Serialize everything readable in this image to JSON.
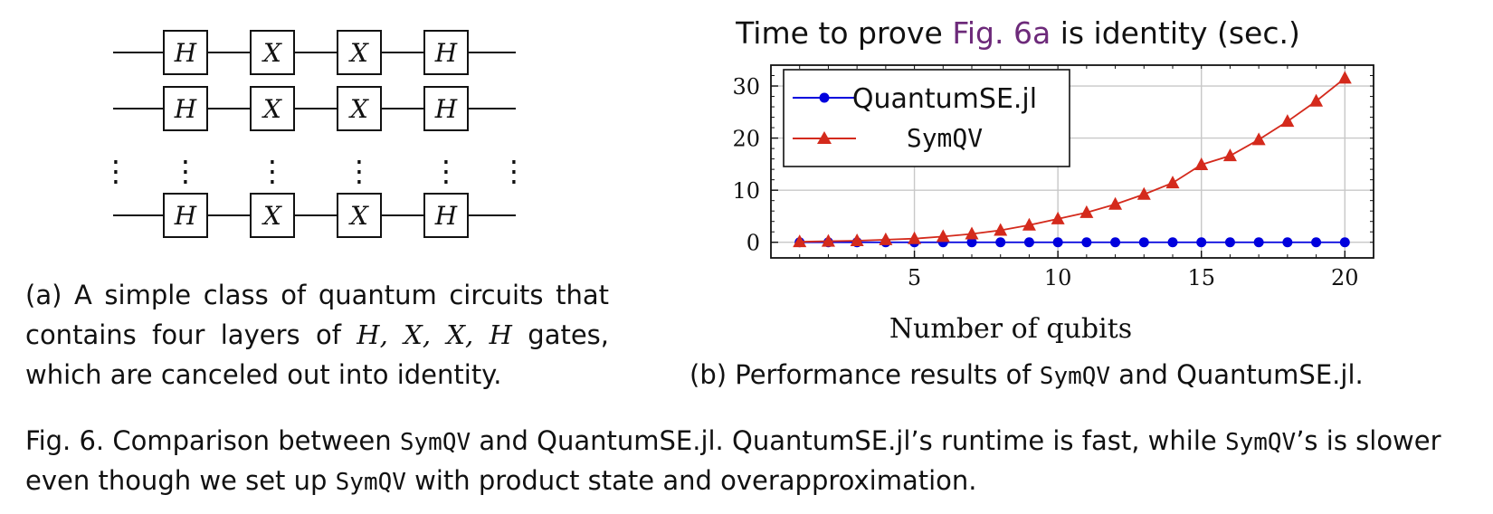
{
  "circuit": {
    "gates": [
      "H",
      "X",
      "X",
      "H"
    ],
    "ellipsis": "⋮"
  },
  "chart_data": {
    "type": "line",
    "title": {
      "pre": "Time to prove ",
      "ref": "Fig. 6a",
      "post": " is identity (sec.)"
    },
    "xlabel": "Number of qubits",
    "ylabel": "",
    "xlim": [
      0,
      21
    ],
    "ylim": [
      -3,
      34
    ],
    "xticks": [
      5,
      10,
      15,
      20
    ],
    "yticks": [
      0,
      10,
      20,
      30
    ],
    "grid": true,
    "legend_position": "top-left",
    "x": [
      1,
      2,
      3,
      4,
      5,
      6,
      7,
      8,
      9,
      10,
      11,
      12,
      13,
      14,
      15,
      16,
      17,
      18,
      19,
      20
    ],
    "series": [
      {
        "name": "QuantumSE.jl",
        "marker": "circle",
        "color": "#0000dd",
        "values": [
          0,
          0,
          0,
          0,
          0,
          0,
          0,
          0,
          0,
          0,
          0,
          0,
          0,
          0,
          0,
          0,
          0,
          0,
          0,
          0
        ]
      },
      {
        "name": "SymQV",
        "marker": "triangle",
        "color": "#d42a1c",
        "values": [
          0.1,
          0.2,
          0.3,
          0.5,
          0.7,
          1.1,
          1.6,
          2.3,
          3.3,
          4.5,
          5.7,
          7.3,
          9.2,
          11.4,
          14.9,
          16.6,
          19.7,
          23.2,
          27.1,
          31.5
        ]
      }
    ]
  },
  "captions": {
    "a": {
      "text1": "(a) A simple class of quantum circuits that contains four layers of ",
      "math": "H, X, X, H",
      "text2": " gates, which are canceled out into identity."
    },
    "b": {
      "pre": "(b) Performance results of ",
      "tool": "SymQV",
      "mid": " and QuantumSE.jl."
    },
    "figure": {
      "label": "Fig. 6.",
      "p1": "  Comparison between ",
      "t1": "SymQV",
      "p2": " and QuantumSE.jl. QuantumSE.jl’s runtime is fast, while ",
      "t2": "SymQV",
      "p3": "’s is slower even though we set up ",
      "t3": "SymQV",
      "p4": " with product state and overapproximation."
    }
  }
}
